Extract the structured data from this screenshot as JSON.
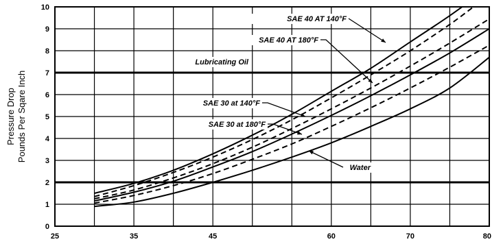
{
  "chart_data": {
    "type": "line",
    "ylabel_lines": [
      "Pressure Drop",
      "Pounds Per Sqare Inch"
    ],
    "xlabel": "",
    "xlim": [
      25,
      80
    ],
    "ylim": [
      0,
      10
    ],
    "x_ticks": [
      25,
      35,
      45,
      60,
      70,
      80
    ],
    "y_ticks": [
      0,
      1,
      2,
      3,
      4,
      5,
      6,
      7,
      8,
      9,
      10
    ],
    "x_grid_minor": [
      30,
      40,
      50,
      55,
      65,
      75
    ],
    "grid": true,
    "reference_lines": [
      {
        "label": "Lubricating Oil",
        "y": 7
      },
      {
        "label": "",
        "y": 2
      }
    ],
    "series": [
      {
        "name": "SAE 40 AT 140°F",
        "style": "solid",
        "x": [
          30,
          35,
          40,
          45,
          50,
          55,
          60,
          65,
          70,
          75,
          80
        ],
        "y": [
          1.5,
          1.95,
          2.55,
          3.3,
          4.15,
          5.1,
          6.15,
          7.2,
          8.4,
          9.6,
          10.9
        ]
      },
      {
        "name": "SAE 40 AT 180°F",
        "style": "dashed",
        "x": [
          30,
          35,
          40,
          45,
          50,
          55,
          60,
          65,
          70,
          75,
          78
        ],
        "y": [
          1.35,
          1.85,
          2.45,
          3.15,
          3.95,
          4.85,
          5.85,
          6.9,
          8.0,
          9.2,
          10.0
        ]
      },
      {
        "name": "SAE 30 at 140°F",
        "style": "dashed",
        "x": [
          30,
          35,
          40,
          45,
          50,
          55,
          60,
          65,
          70,
          75,
          80
        ],
        "y": [
          1.25,
          1.65,
          2.2,
          2.85,
          3.6,
          4.45,
          5.35,
          6.3,
          7.3,
          8.35,
          9.45
        ]
      },
      {
        "name": "SAE 30 at 180°F",
        "style": "solid",
        "x": [
          30,
          35,
          40,
          45,
          50,
          55,
          60,
          65,
          70,
          75,
          80
        ],
        "y": [
          1.15,
          1.55,
          2.05,
          2.7,
          3.4,
          4.2,
          5.05,
          5.95,
          6.9,
          7.9,
          9.0
        ]
      },
      {
        "name": "",
        "style": "dashed",
        "x": [
          30,
          35,
          40,
          45,
          50,
          55,
          60,
          65,
          70,
          75,
          80
        ],
        "y": [
          1.05,
          1.4,
          1.85,
          2.4,
          3.05,
          3.75,
          4.55,
          5.4,
          6.3,
          7.25,
          8.25
        ]
      },
      {
        "name": "Water",
        "style": "solid",
        "x": [
          30,
          35,
          40,
          45,
          50,
          55,
          60,
          65,
          70,
          75,
          80
        ],
        "y": [
          0.9,
          1.1,
          1.5,
          2.0,
          2.55,
          3.15,
          3.8,
          4.55,
          5.35,
          6.3,
          7.7
        ]
      }
    ],
    "annotations": [
      {
        "text": "SAE 40 AT 140°F",
        "points_to": "SAE 40 AT 140°F"
      },
      {
        "text": "SAE 40 AT 180°F",
        "points_to": "SAE 30 at 180°F"
      },
      {
        "text": "Lubricating Oil",
        "points_to": "reference line 7"
      },
      {
        "text": "SAE 30 at 140°F",
        "points_to": "SAE 30 at 180°F"
      },
      {
        "text": "SAE 30 at 180°F",
        "points_to": "lowest dashed curve"
      },
      {
        "text": "Water",
        "points_to": "Water"
      }
    ]
  }
}
